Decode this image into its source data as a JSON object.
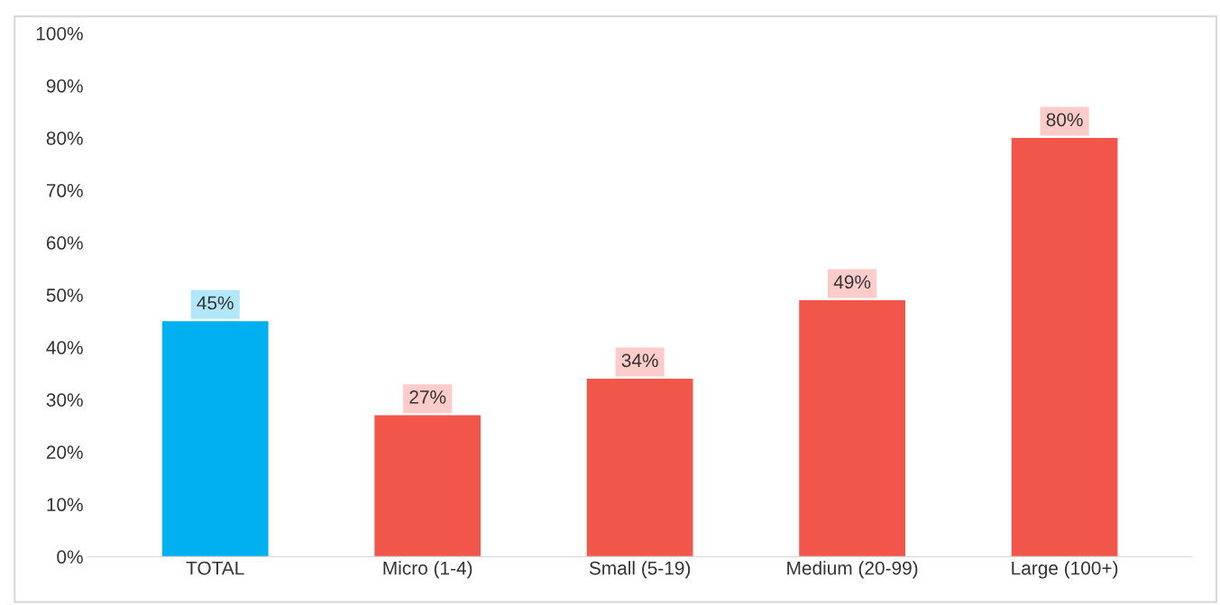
{
  "chart_data": {
    "type": "bar",
    "categories": [
      "TOTAL",
      "Micro (1-4)",
      "Small (5-19)",
      "Medium (20-99)",
      "Large (100+)"
    ],
    "values": [
      45,
      27,
      34,
      49,
      80
    ],
    "colors": [
      "#00b0f0",
      "#f2554a",
      "#f2554a",
      "#f2554a",
      "#f2554a"
    ],
    "value_labels": [
      "45%",
      "27%",
      "34%",
      "49%",
      "80%"
    ],
    "ylim": [
      0,
      100
    ],
    "yticks": [
      {
        "value": 0,
        "label": "0%"
      },
      {
        "value": 10,
        "label": "10%"
      },
      {
        "value": 20,
        "label": "20%"
      },
      {
        "value": 30,
        "label": "30%"
      },
      {
        "value": 40,
        "label": "40%"
      },
      {
        "value": 50,
        "label": "50%"
      },
      {
        "value": 60,
        "label": "60%"
      },
      {
        "value": 70,
        "label": "70%"
      },
      {
        "value": 80,
        "label": "80%"
      },
      {
        "value": 90,
        "label": "90%"
      },
      {
        "value": 100,
        "label": "100%"
      }
    ],
    "grid": false,
    "legend": false
  }
}
